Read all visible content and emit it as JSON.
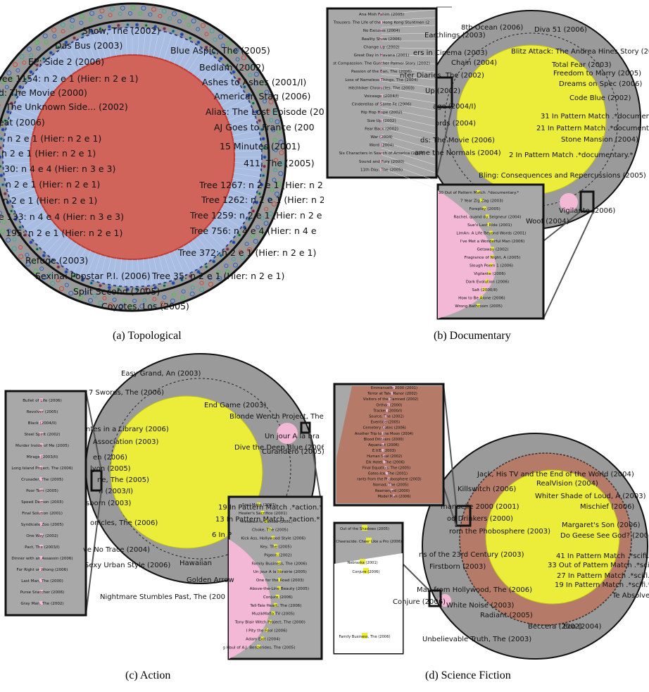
{
  "captions": {
    "a": "(a) Topological",
    "b": "(b) Documentary",
    "c": "(c) Action",
    "d": "(d) Science Fiction"
  },
  "colors": {
    "ring": "#9a9a9a",
    "blue_region": "#a9bde3",
    "red_core": "#d0645a",
    "yellow_core": "#ecec3a",
    "pink": "#f2b8d6",
    "brown": "#b57a68"
  },
  "panel_a": {
    "labels": [
      "Show, The (2002)",
      "Das Bus (2003)",
      "EP: Side 2 (2006)",
      "ree 1154: n 2 e 1 (Hier: n 2 e 1)",
      "d: The Movie (2000)",
      "The Unknown Side... (2002)",
      "eat (2006)",
      "n 2 e 1 (Hier: n 2 e 1)",
      "n 2 e 1 (Hier: n 2 e 1)",
      "30: n 4 e 4 (Hier: n 3 e 3)",
      "n 2 e 1 (Hier: n 2 e 1)",
      "n 2 e 1 (Hier: n 2 e 1)",
      "e 133: n 4 e 4 (Hier: n 3 e 3)",
      "195: n 2 e 1 (Hier: n 2 e 1)",
      "Refuge (2003)",
      "Sexina: Popstar P.I. (2006)",
      "Split Second (2005)",
      "Coyotes, Los (2005)",
      "Blue Aspic, The (2005)",
      "Bedlam (2002)",
      "Ashes to Ashes (2001/I)",
      "American Stag (2006)",
      "Alias: The Lost Episode (200",
      "AJ Goes to France (200",
      "15 Minutes (2001)",
      "411, The (2005)",
      "Tree 1267: n 2 e 1 (Hier: n 2",
      "Tree 1262: n 2 e 1 (Hier: n 2",
      "Tree 1259: n 2 e 1 (Hier: n 2 e",
      "Tree 756: n 4 e 4 (Hier: n 4 e",
      "Tree 372: n 2 e 1 (Hier: n 2 e 1)",
      "Tree 35: n 2 e 1 (Hier: n 2 e 1)"
    ]
  },
  "panel_b": {
    "labels": [
      "8th  Ocean (2006)",
      "Earthlings (2003)",
      "Diva 51 (2006)",
      "ers in Cinema (2003)",
      "Chain (2004)",
      "Blitz Attack: The Andrea Hines Story (2005",
      "Total Fear (2003)",
      "Freedom to Marry (2005)",
      "Dreams on Spec (2006)",
      "Code Blue (2002)",
      "nter Diaries, The (2002)",
      "Up (2002)",
      "age (2004/I)",
      "ords (2004)",
      "ds: The Movie (2006)",
      "ame  the Normals (2004)",
      "31 In Pattern Match .*documentar",
      "21 In Pattern Match .*documentary",
      "Stone Mansion (2004)",
      "2 In Pattern Match .*documentary.*",
      "Bling: Consequences and Repercussions (2005)",
      "Vigilante (2006)",
      "Woof (2004)"
    ],
    "zoom_top": [
      "Ana Mish Fahim (2005)",
      "Trousers: The Life of the Hong Kong Stuntmen (2",
      "No Excuses (2004)",
      "Reality Show (2006)",
      "Change Up (2002)",
      "Great Day in Havana (2001)",
      "st Compassion: The Gunther Palmer Story (2002)",
      "Passion of the Ban, The (2006)",
      "Loss of Nameless Things, The (2004)",
      "Hitchhiker Chronicles, The (2003)",
      "Voiceage (2004/I)",
      "Cinderellas of Sante Fe (2006)",
      "Hip Hop Hope (2002)",
      "Size Up (2002)",
      "Fear Back (2002)",
      "War (2004)",
      "Word (2004)",
      "Six Characters in Search of America (2004)",
      "Sound and Fury (2000)",
      "11th Day, The (2005)"
    ],
    "zoom_bottom": [
      "30 Out of Pattern Match .*documentary.*",
      "7 Year Zig Zag (2003)",
      "Foreplay (2005)",
      "Rachel, quand du Seigneur (2004)",
      "Sue's Last Ride (2001)",
      "LimAn: A Life Beyond Words (2001)",
      "I've Met a Wonderful Man (2006)",
      "Getaway (2002)",
      "Fragrance of Night, A (2005)",
      "Slough Poem 1 (2006)",
      "Vigilante (2006)",
      "Dark Evolution (2006)",
      "Salt (2000/II)",
      "How to Be Alone (2006)",
      "Wrong Bathroom (2005)"
    ]
  },
  "panel_c": {
    "labels": [
      "Easy Grand, An (2003)",
      "7 Swords, The (2006)",
      "End Game (2003)",
      "Blonde Wench Project, The",
      "ntes in a Library (2006)",
      "Association (2003)",
      "Un jour A  la bra",
      "Dive the Deep Blue (2006)",
      "Curandero (2005)",
      "en (2006)",
      "lyon (2005)",
      "ne, The (2005)",
      "n (2003/I)",
      "sborn (2003)",
      "onicles, The (2006)",
      "19 In Pattern Match .*action.*",
      "13 In Pattern Match .*action.*",
      "6 In P",
      "ve No Trace (2004)",
      "Sexy Urban Style (2006)",
      "Hawaiian",
      "Golden Arrow",
      "Nightmare Stumbles Past, The (200"
    ],
    "zoom_left": [
      "Bullet of Life (2006)",
      "Revolver (2005)",
      "Black (2004/II)",
      "Steel Spirit (2002)",
      "Murder Inside of Me (2005)",
      "Mirage (2003/II)",
      "Long Island Project, The (2006)",
      "Crusader, The (2005)",
      "Poor Tom (2005)",
      "Speed Demon (2003)",
      "Final Solution (2001)",
      "Syndicate Zoo (2005)",
      "One Way (2002)",
      "Pact, The (2003/I)",
      "Dinner with an Assassin (2006)",
      "For Right or Wrong (2006)",
      "Last Man, The (2000)",
      "Purse Snatcher (2006)",
      "Gray Man, The (2002)"
    ],
    "zoom_right": [
      "Soul Mate (2003)",
      "Healer's Sacrifice (2001)",
      "Imitation is Suicide (2001)",
      "Choke, The (2005)",
      "Kick Ass, Hollywood Style (2006)",
      "Key, The (2005)",
      "Pigeon (2002)",
      "Family Business, The (2006)",
      "Un jour A  la librairie (2005)",
      "One for the Road (2003)",
      "Above-the-Line Beauty (2005)",
      "Conjure (2006)",
      "Tell-Tale Heart, The (2006)",
      "MuzikMafia TV (2005)",
      "Tony Blair Witch Project, The (2000)",
      "I Pity the Fool (2006)",
      "Adam Exit (2004)",
      "g Haul of A.J. Benzerides, The (2005)"
    ]
  },
  "panel_d": {
    "labels": [
      "Jack, His TV and the End of the World (2004)",
      "RealVision (2004)",
      "Killswitch (2006)",
      "Whiter Shade of Loud, A (2003)",
      "manuelle 2000 (2001)",
      "od Drinkers (2000)",
      "rom the Phobosphere (2003)",
      "Mischief (2006)",
      "Margaret's Son (2006)",
      "Do Geese See God? (2004)",
      "ns of the 23rd Century (2003)",
      "41 In Pattern Match .*scifi.*",
      "33 Out of Pattern Match .*scifi.*",
      "Firstborn (2003)",
      "27 In Pattern Match .*scifi.*",
      "19 In Pattern Match .*scifi.*",
      "Man from Hollywood, The (2006)",
      "Te Absolve (2005)",
      "White Noise (2003)",
      "Conjure (2006)",
      "Radiant (2005)",
      "Beccera (2002)",
      "Eco (2004)",
      "Unbelievable Truth, The (2003)"
    ],
    "zoom_top": [
      "Emmanuelle 2000 (2001)",
      "Terror at Tate Manor (2002)",
      "Visitors of the Damned (2002)",
      "Orthon (2000)",
      "Tracker (2000/I)",
      "Source, The (2002)",
      "Eventide (2005)",
      "Cemetery Gates (2006)",
      "Another Trip to the Moon (2004)",
      "Blood Drinkers (2000)",
      "Aquanaut (2006)",
      "E.V.E. (2003)",
      "Human Seal (2002)",
      "Elk Hotel, The (2006)",
      "Final Equation, The (2005)",
      "Gates-Ice, The (2001)",
      "rants from the Phobosphere (2003)",
      "Nomad, The (2005)",
      "Rearranged (2000)",
      "Model Man (2006)"
    ],
    "zoom_bottom": [
      "Out of the Shadows (2005)",
      "Cheeracide: Cheer Like a Pro (2006)",
      "Nebraska (2001)",
      "Conjure (2006)",
      "Family Business, The (2006)"
    ]
  }
}
